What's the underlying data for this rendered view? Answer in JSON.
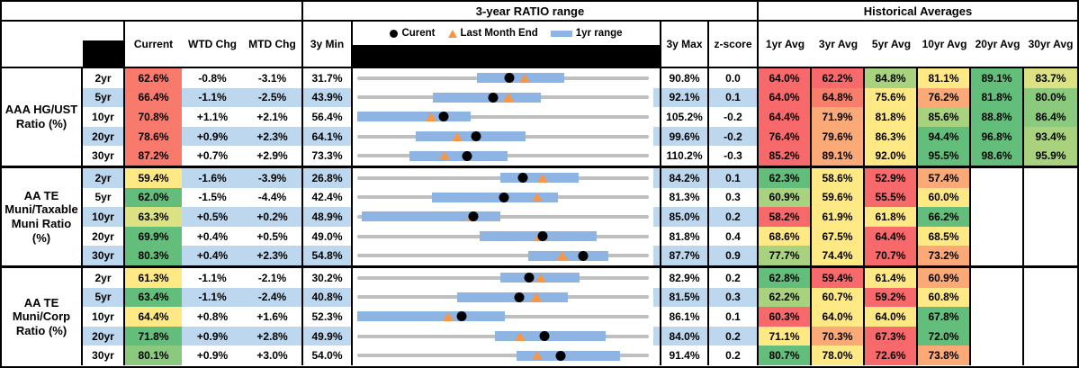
{
  "header": {
    "ratio_range_title": "3-year RATIO range",
    "historical_title": "Historical Averages",
    "col_current": "Current",
    "col_wtd": "WTD Chg",
    "col_mtd": "MTD Chg",
    "col_3ymin": "3y Min",
    "col_3ymax": "3y Max",
    "col_zscore": "z-score",
    "avg_cols": [
      "1yr Avg",
      "3yr Avg",
      "5yr Avg",
      "10yr Avg",
      "20yr Avg",
      "30yr Avg"
    ],
    "legend": {
      "current": "Curent",
      "last_month_end": "Last Month End",
      "range": "1yr range"
    }
  },
  "colors": {
    "red": "#F8696B",
    "salmon": "#F87A6D",
    "redorange": "#F87E6C",
    "orange": "#FBAA77",
    "yellow": "#FFE984",
    "yellowgreen": "#DCE182",
    "lightgreen": "#A9D27F",
    "midgreen": "#8BC97E",
    "green": "#63BE7B",
    "row_shade": "#BDD7EE",
    "bar_blue": "#8EB4E3",
    "track_gray": "#BFBFBF",
    "dot_black": "#000000",
    "triangle_orange": "#F79646"
  },
  "chart_data": {
    "type": "table",
    "title": "3-year RATIO range",
    "note": "Each row shows a dot-and-range chart: axis spans 3y Min to 3y Max; blue bar = 1yr range (values estimated from pixels); black dot = Current; orange triangle = Last Month End.",
    "groups": [
      {
        "label": "AAA HG/UST Ratio (%)",
        "rows": [
          {
            "tenor": "2yr",
            "shaded": false,
            "current": "62.6%",
            "current_color": "salmon",
            "wtd": "-0.8%",
            "mtd": "-3.1%",
            "min": "31.7%",
            "max": "90.8%",
            "z": "0.0",
            "range": {
              "min": 31.7,
              "max": 90.8,
              "current": 62.6,
              "last_month_end": 65.7,
              "yr1_lo": 55.9,
              "yr1_hi": 73.7
            },
            "avgs": [
              [
                "64.0%",
                "red"
              ],
              [
                "62.2%",
                "red"
              ],
              [
                "84.8%",
                "lightgreen"
              ],
              [
                "81.1%",
                "yellow"
              ],
              [
                "89.1%",
                "green"
              ],
              [
                "83.7%",
                "yellowgreen"
              ]
            ]
          },
          {
            "tenor": "5yr",
            "shaded": true,
            "current": "66.4%",
            "current_color": "salmon",
            "wtd": "-1.1%",
            "mtd": "-2.5%",
            "min": "43.9%",
            "max": "92.1%",
            "z": "0.1",
            "range": {
              "min": 43.9,
              "max": 92.1,
              "current": 66.4,
              "last_month_end": 68.9,
              "yr1_lo": 56.4,
              "yr1_hi": 74.3
            },
            "avgs": [
              [
                "64.0%",
                "red"
              ],
              [
                "64.8%",
                "redorange"
              ],
              [
                "75.6%",
                "yellow"
              ],
              [
                "76.2%",
                "orange"
              ],
              [
                "81.8%",
                "green"
              ],
              [
                "80.0%",
                "midgreen"
              ]
            ]
          },
          {
            "tenor": "10yr",
            "shaded": false,
            "current": "70.8%",
            "current_color": "salmon",
            "wtd": "+1.1%",
            "mtd": "+2.1%",
            "min": "56.4%",
            "max": "105.2%",
            "z": "-0.2",
            "range": {
              "min": 56.4,
              "max": 105.2,
              "current": 70.8,
              "last_month_end": 68.7,
              "yr1_lo": 56.4,
              "yr1_hi": 75.4
            },
            "avgs": [
              [
                "64.4%",
                "red"
              ],
              [
                "71.9%",
                "orange"
              ],
              [
                "81.8%",
                "yellow"
              ],
              [
                "85.6%",
                "lightgreen"
              ],
              [
                "88.8%",
                "green"
              ],
              [
                "86.4%",
                "midgreen"
              ]
            ]
          },
          {
            "tenor": "20yr",
            "shaded": true,
            "current": "78.6%",
            "current_color": "salmon",
            "wtd": "+0.9%",
            "mtd": "+2.3%",
            "min": "64.1%",
            "max": "99.6%",
            "z": "-0.2",
            "range": {
              "min": 64.1,
              "max": 99.6,
              "current": 78.6,
              "last_month_end": 76.3,
              "yr1_lo": 71.2,
              "yr1_hi": 84.6
            },
            "avgs": [
              [
                "76.4%",
                "red"
              ],
              [
                "79.6%",
                "orange"
              ],
              [
                "86.3%",
                "yellow"
              ],
              [
                "94.4%",
                "green"
              ],
              [
                "96.8%",
                "green"
              ],
              [
                "93.4%",
                "lightgreen"
              ]
            ]
          },
          {
            "tenor": "30yr",
            "shaded": false,
            "current": "87.2%",
            "current_color": "salmon",
            "wtd": "+0.7%",
            "mtd": "+2.9%",
            "min": "73.3%",
            "max": "110.2%",
            "z": "-0.3",
            "range": {
              "min": 73.3,
              "max": 110.2,
              "current": 87.2,
              "last_month_end": 84.3,
              "yr1_lo": 79.9,
              "yr1_hi": 92.3
            },
            "avgs": [
              [
                "85.2%",
                "red"
              ],
              [
                "89.1%",
                "orange"
              ],
              [
                "92.0%",
                "yellow"
              ],
              [
                "95.5%",
                "green"
              ],
              [
                "98.6%",
                "green"
              ],
              [
                "95.9%",
                "lightgreen"
              ]
            ]
          }
        ]
      },
      {
        "label": "AA TE Muni/Taxable Muni Ratio (%)",
        "rows": [
          {
            "tenor": "2yr",
            "shaded": true,
            "current": "59.4%",
            "current_color": "yellow",
            "wtd": "-1.6%",
            "mtd": "-3.9%",
            "min": "26.8%",
            "max": "84.2%",
            "z": "0.1",
            "range": {
              "min": 26.8,
              "max": 84.2,
              "current": 59.4,
              "last_month_end": 63.3,
              "yr1_lo": 54.9,
              "yr1_hi": 70.4
            },
            "avgs": [
              [
                "62.3%",
                "green"
              ],
              [
                "58.6%",
                "yellow"
              ],
              [
                "52.9%",
                "red"
              ],
              [
                "57.4%",
                "orange"
              ],
              null,
              null
            ]
          },
          {
            "tenor": "5yr",
            "shaded": false,
            "current": "62.0%",
            "current_color": "green",
            "wtd": "-1.5%",
            "mtd": "-4.4%",
            "min": "42.4%",
            "max": "81.3%",
            "z": "0.3",
            "range": {
              "min": 42.4,
              "max": 81.3,
              "current": 62.0,
              "last_month_end": 66.4,
              "yr1_lo": 52.4,
              "yr1_hi": 69.2
            },
            "avgs": [
              [
                "60.9%",
                "lightgreen"
              ],
              [
                "59.6%",
                "yellow"
              ],
              [
                "55.5%",
                "red"
              ],
              [
                "60.0%",
                "yellow"
              ],
              null,
              null
            ]
          },
          {
            "tenor": "10yr",
            "shaded": true,
            "current": "63.3%",
            "current_color": "yellowgreen",
            "wtd": "+0.5%",
            "mtd": "+0.2%",
            "min": "48.9%",
            "max": "85.0%",
            "z": "0.2",
            "range": {
              "min": 48.9,
              "max": 85.0,
              "current": 63.3,
              "last_month_end": 63.1,
              "yr1_lo": 49.5,
              "yr1_hi": 66.6
            },
            "avgs": [
              [
                "58.2%",
                "red"
              ],
              [
                "61.9%",
                "yellow"
              ],
              [
                "61.8%",
                "yellow"
              ],
              [
                "66.2%",
                "green"
              ],
              null,
              null
            ]
          },
          {
            "tenor": "20yr",
            "shaded": false,
            "current": "69.9%",
            "current_color": "green",
            "wtd": "+0.4%",
            "mtd": "+0.5%",
            "min": "49.0%",
            "max": "81.8%",
            "z": "0.4",
            "range": {
              "min": 49.0,
              "max": 81.8,
              "current": 69.9,
              "last_month_end": 69.4,
              "yr1_lo": 62.8,
              "yr1_hi": 75.9
            },
            "avgs": [
              [
                "68.6%",
                "yellow"
              ],
              [
                "67.5%",
                "yellow"
              ],
              [
                "64.4%",
                "red"
              ],
              [
                "68.5%",
                "yellow"
              ],
              null,
              null
            ]
          },
          {
            "tenor": "30yr",
            "shaded": true,
            "current": "80.3%",
            "current_color": "green",
            "wtd": "+0.4%",
            "mtd": "+2.3%",
            "min": "54.8%",
            "max": "87.7%",
            "z": "0.9",
            "range": {
              "min": 54.8,
              "max": 87.7,
              "current": 80.3,
              "last_month_end": 78.0,
              "yr1_lo": 74.1,
              "yr1_hi": 83.1
            },
            "avgs": [
              [
                "77.7%",
                "lightgreen"
              ],
              [
                "74.4%",
                "yellow"
              ],
              [
                "70.7%",
                "red"
              ],
              [
                "73.2%",
                "orange"
              ],
              null,
              null
            ]
          }
        ]
      },
      {
        "label": "AA TE Muni/Corp Ratio (%)",
        "rows": [
          {
            "tenor": "2yr",
            "shaded": false,
            "current": "61.3%",
            "current_color": "yellow",
            "wtd": "-1.1%",
            "mtd": "-2.1%",
            "min": "30.2%",
            "max": "82.9%",
            "z": "0.2",
            "range": {
              "min": 30.2,
              "max": 82.9,
              "current": 61.3,
              "last_month_end": 63.4,
              "yr1_lo": 56.0,
              "yr1_hi": 70.3
            },
            "avgs": [
              [
                "62.8%",
                "green"
              ],
              [
                "59.4%",
                "red"
              ],
              [
                "61.4%",
                "yellow"
              ],
              [
                "60.9%",
                "orange"
              ],
              null,
              null
            ]
          },
          {
            "tenor": "5yr",
            "shaded": true,
            "current": "63.4%",
            "current_color": "green",
            "wtd": "-1.1%",
            "mtd": "-2.4%",
            "min": "40.8%",
            "max": "81.5%",
            "z": "0.3",
            "range": {
              "min": 40.8,
              "max": 81.5,
              "current": 63.4,
              "last_month_end": 65.8,
              "yr1_lo": 54.7,
              "yr1_hi": 70.2
            },
            "avgs": [
              [
                "62.2%",
                "lightgreen"
              ],
              [
                "60.7%",
                "yellow"
              ],
              [
                "59.2%",
                "red"
              ],
              [
                "60.8%",
                "yellow"
              ],
              null,
              null
            ]
          },
          {
            "tenor": "10yr",
            "shaded": false,
            "current": "64.4%",
            "current_color": "yellow",
            "wtd": "+0.8%",
            "mtd": "+1.6%",
            "min": "52.3%",
            "max": "86.1%",
            "z": "0.1",
            "range": {
              "min": 52.3,
              "max": 86.1,
              "current": 64.4,
              "last_month_end": 62.8,
              "yr1_lo": 52.3,
              "yr1_hi": 69.4
            },
            "avgs": [
              [
                "60.3%",
                "red"
              ],
              [
                "64.0%",
                "yellow"
              ],
              [
                "64.0%",
                "yellow"
              ],
              [
                "67.8%",
                "green"
              ],
              null,
              null
            ]
          },
          {
            "tenor": "20yr",
            "shaded": true,
            "current": "71.8%",
            "current_color": "green",
            "wtd": "+0.9%",
            "mtd": "+2.8%",
            "min": "49.9%",
            "max": "84.0%",
            "z": "0.2",
            "range": {
              "min": 49.9,
              "max": 84.0,
              "current": 71.8,
              "last_month_end": 69.0,
              "yr1_lo": 66.0,
              "yr1_hi": 78.9
            },
            "avgs": [
              [
                "71.1%",
                "yellow"
              ],
              [
                "70.3%",
                "orange"
              ],
              [
                "67.3%",
                "red"
              ],
              [
                "72.0%",
                "green"
              ],
              null,
              null
            ]
          },
          {
            "tenor": "30yr",
            "shaded": false,
            "current": "80.1%",
            "current_color": "midgreen",
            "wtd": "+0.9%",
            "mtd": "+3.0%",
            "min": "54.0%",
            "max": "91.4%",
            "z": "0.2",
            "range": {
              "min": 54.0,
              "max": 91.4,
              "current": 80.1,
              "last_month_end": 77.1,
              "yr1_lo": 74.4,
              "yr1_hi": 87.7
            },
            "avgs": [
              [
                "80.7%",
                "green"
              ],
              [
                "78.0%",
                "yellow"
              ],
              [
                "72.6%",
                "red"
              ],
              [
                "73.8%",
                "orange"
              ],
              null,
              null
            ]
          }
        ]
      }
    ]
  }
}
